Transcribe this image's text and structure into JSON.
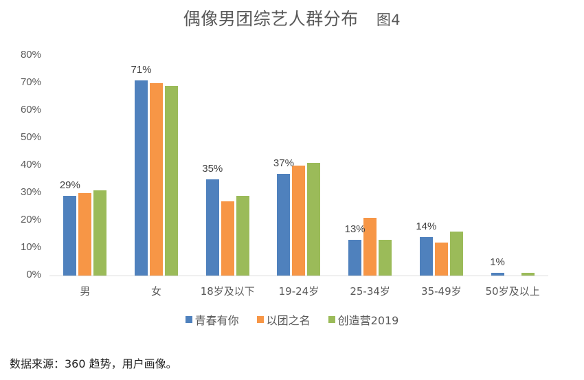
{
  "title": "偶像男团综艺人群分布",
  "figure_label": "图4",
  "source_note": "数据来源：360 趋势，用户画像。",
  "colors": {
    "青春有你": "#4f81bd",
    "以团之名": "#f79646",
    "创造营2019": "#9bbb59"
  },
  "chart_data": {
    "type": "bar",
    "title": "偶像男团综艺人群分布 图4",
    "xlabel": "",
    "ylabel": "",
    "ylim": [
      0,
      80
    ],
    "yticks": [
      "0%",
      "10%",
      "20%",
      "30%",
      "40%",
      "50%",
      "60%",
      "70%",
      "80%"
    ],
    "grid": false,
    "legend_position": "bottom",
    "categories": [
      "男",
      "女",
      "18岁及以下",
      "19-24岁",
      "25-34岁",
      "35-49岁",
      "50岁及以上"
    ],
    "series": [
      {
        "name": "青春有你",
        "color": "#4f81bd",
        "values": [
          29,
          71,
          35,
          37,
          13,
          14,
          1
        ]
      },
      {
        "name": "以团之名",
        "color": "#f79646",
        "values": [
          30,
          70,
          27,
          40,
          21,
          12,
          0
        ]
      },
      {
        "name": "创造营2019",
        "color": "#9bbb59",
        "values": [
          31,
          69,
          29,
          41,
          13,
          16,
          1
        ]
      }
    ],
    "data_labels": [
      {
        "category": "男",
        "series": "青春有你",
        "text": "29%"
      },
      {
        "category": "女",
        "series": "青春有你",
        "text": "71%"
      },
      {
        "category": "18岁及以下",
        "series": "青春有你",
        "text": "35%"
      },
      {
        "category": "19-24岁",
        "series": "青春有你",
        "text": "37%"
      },
      {
        "category": "25-34岁",
        "series": "青春有你",
        "text": "13%"
      },
      {
        "category": "35-49岁",
        "series": "青春有你",
        "text": "14%"
      },
      {
        "category": "50岁及以上",
        "series": "青春有你",
        "text": "1%"
      }
    ]
  }
}
